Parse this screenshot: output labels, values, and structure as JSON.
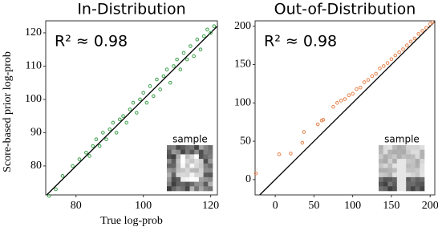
{
  "chart_data": [
    {
      "type": "scatter",
      "title": "In-Distribution",
      "annotation": "R² ≈ 0.98",
      "inset_label": "sample",
      "x_label": "True log-prob",
      "y_label": "Score-based prior log-prob",
      "color": "#3aa04a",
      "x": [
        72,
        74,
        76,
        79,
        81,
        83,
        84,
        85,
        86,
        87,
        88,
        89,
        90,
        91,
        92,
        93,
        94,
        95,
        96,
        97,
        98,
        99,
        100,
        101,
        102,
        103,
        104,
        105,
        106,
        107,
        108,
        109,
        110,
        111,
        112,
        113,
        114,
        115,
        116,
        117,
        118,
        119,
        120,
        121
      ],
      "y": [
        71,
        73,
        77,
        80,
        82,
        84,
        83,
        86,
        88,
        86,
        90,
        88,
        91,
        93,
        90,
        94,
        95,
        93,
        97,
        99,
        96,
        100,
        102,
        99,
        104,
        101,
        106,
        103,
        107,
        109,
        105,
        110,
        112,
        109,
        114,
        112,
        116,
        113,
        118,
        115,
        119,
        121,
        120,
        122
      ],
      "xlim": [
        71,
        122
      ],
      "ylim": [
        71.3,
        123.6
      ],
      "xticks": [
        80,
        100,
        120
      ],
      "yticks": [
        80,
        90,
        100,
        110,
        120
      ],
      "identity_line": true
    },
    {
      "type": "scatter",
      "title": "Out-of-Distribution",
      "annotation": "R² ≈ 0.98",
      "inset_label": "sample",
      "color": "#e8824a",
      "x": [
        -25,
        5,
        20,
        35,
        37,
        55,
        60,
        62,
        75,
        80,
        85,
        90,
        95,
        100,
        105,
        110,
        115,
        120,
        125,
        130,
        135,
        140,
        145,
        150,
        155,
        160,
        165,
        170,
        175,
        180,
        185,
        190,
        195,
        200,
        203
      ],
      "y": [
        8,
        33,
        34,
        48,
        62,
        72,
        77,
        78,
        95,
        100,
        103,
        105,
        110,
        112,
        118,
        120,
        127,
        130,
        135,
        138,
        145,
        148,
        152,
        157,
        162,
        166,
        170,
        175,
        180,
        184,
        190,
        194,
        198,
        203,
        205
      ],
      "xlim": [
        -26,
        206
      ],
      "ylim": [
        -20,
        207
      ],
      "xticks": [
        0,
        50,
        100,
        150,
        200
      ],
      "yticks": [
        0,
        50,
        100,
        150,
        200
      ],
      "identity_line": true
    }
  ]
}
